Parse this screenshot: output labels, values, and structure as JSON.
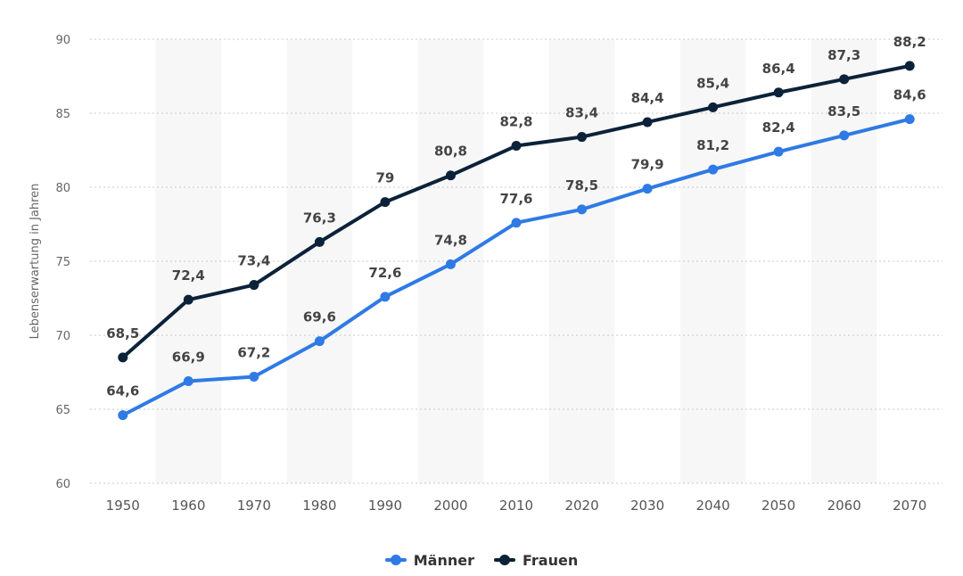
{
  "chart_data": {
    "type": "line",
    "title": "",
    "xlabel": "",
    "ylabel": "Lebenserwartung in Jahren",
    "categories": [
      "1950",
      "1960",
      "1970",
      "1980",
      "1990",
      "2000",
      "2010",
      "2020",
      "2030",
      "2040",
      "2050",
      "2060",
      "2070"
    ],
    "yticks": [
      "60",
      "65",
      "70",
      "75",
      "80",
      "85",
      "90"
    ],
    "ylim": [
      60,
      90
    ],
    "grid": "horizontal dotted",
    "legend_position": "bottom",
    "series": [
      {
        "name": "Männer",
        "color": "#2f7ae5",
        "values": [
          64.6,
          66.9,
          67.2,
          69.6,
          72.6,
          74.8,
          77.6,
          78.5,
          79.9,
          81.2,
          82.4,
          83.5,
          84.6
        ],
        "labels": [
          "64,6",
          "66,9",
          "67,2",
          "69,6",
          "72,6",
          "74,8",
          "77,6",
          "78,5",
          "79,9",
          "81,2",
          "82,4",
          "83,5",
          "84,6"
        ]
      },
      {
        "name": "Frauen",
        "color": "#0b2239",
        "values": [
          68.5,
          72.4,
          73.4,
          76.3,
          79,
          80.8,
          82.8,
          83.4,
          84.4,
          85.4,
          86.4,
          87.3,
          88.2
        ],
        "labels": [
          "68,5",
          "72,4",
          "73,4",
          "76,3",
          "79",
          "80,8",
          "82,8",
          "83,4",
          "84,4",
          "85,4",
          "86,4",
          "87,3",
          "88,2"
        ]
      }
    ]
  }
}
